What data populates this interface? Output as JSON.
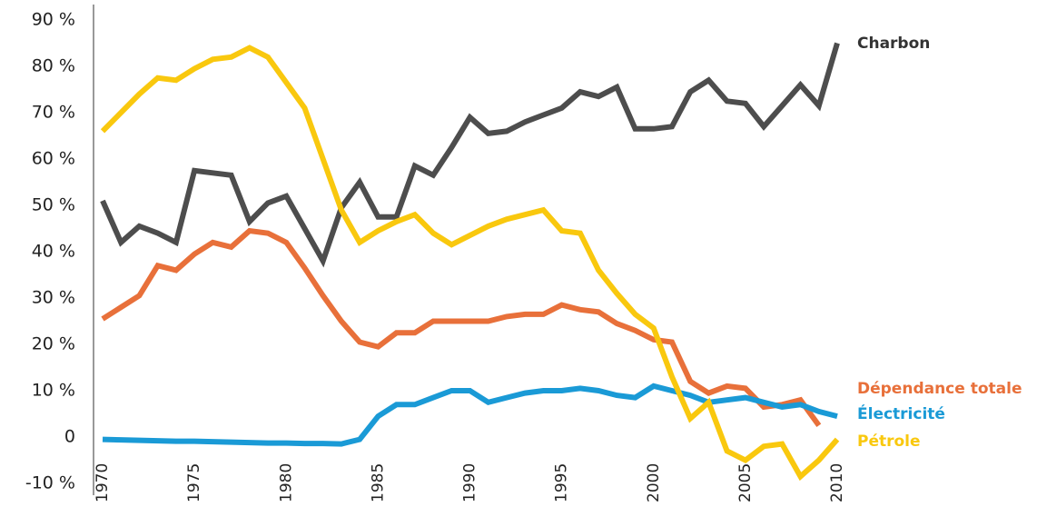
{
  "chart_data": {
    "type": "line",
    "x": [
      1970,
      1971,
      1972,
      1973,
      1974,
      1975,
      1976,
      1977,
      1978,
      1979,
      1980,
      1981,
      1982,
      1983,
      1984,
      1985,
      1986,
      1987,
      1988,
      1989,
      1990,
      1991,
      1992,
      1993,
      1994,
      1995,
      1996,
      1997,
      1998,
      1999,
      2000,
      2001,
      2002,
      2003,
      2004,
      2005,
      2006,
      2007,
      2008,
      2009,
      2010
    ],
    "series": [
      {
        "name": "Charbon",
        "color": "#4d4d4d",
        "values": [
          51,
          42,
          45.5,
          44,
          42,
          57.5,
          57,
          56.5,
          46.5,
          50.5,
          52,
          45,
          38,
          49.5,
          55,
          47.5,
          47.5,
          58.5,
          56.5,
          62.5,
          69,
          65.5,
          66,
          68,
          69.5,
          71,
          74.5,
          73.5,
          75.5,
          66.5,
          66.5,
          67,
          74.5,
          77,
          72.5,
          72,
          67,
          71.5,
          76,
          71.5,
          85
        ]
      },
      {
        "name": "Dépendance totale",
        "color": "#e8703a",
        "values": [
          25.5,
          28,
          30.5,
          37,
          36,
          39.5,
          42,
          41,
          44.5,
          44,
          42,
          36.5,
          30.5,
          25,
          20.5,
          19.5,
          22.5,
          22.5,
          25,
          25,
          25,
          25,
          26,
          26.5,
          26.5,
          28.5,
          27.5,
          27,
          24.5,
          23,
          21,
          20.5,
          12,
          9.5,
          11,
          10.5,
          6.5,
          7,
          8,
          2.5,
          null
        ]
      },
      {
        "name": "Électricité",
        "color": "#1a9ad6",
        "values": [
          -0.5,
          -0.6,
          -0.7,
          -0.8,
          -0.9,
          -0.9,
          -1,
          -1.1,
          -1.2,
          -1.3,
          -1.3,
          -1.4,
          -1.4,
          -1.5,
          -0.5,
          4.5,
          7,
          7,
          8.5,
          10,
          10,
          7.5,
          8.5,
          9.5,
          10,
          10,
          10.5,
          10,
          9,
          8.5,
          11,
          10,
          9,
          7.5,
          8,
          8.5,
          7.5,
          6.5,
          7,
          5.5,
          4.5
        ]
      },
      {
        "name": "Pétrole",
        "color": "#f9c80e",
        "values": [
          66,
          70,
          74,
          77.5,
          77,
          79.5,
          81.5,
          82,
          84,
          82,
          76.5,
          71,
          60,
          49,
          42,
          44.5,
          46.5,
          48,
          44,
          41.5,
          43.5,
          45.5,
          47,
          48,
          49,
          44.5,
          44,
          36,
          31,
          26.5,
          23.5,
          13,
          4,
          7.5,
          -3,
          -5,
          -2,
          -1.5,
          -8.5,
          -5,
          -0.5
        ]
      }
    ],
    "xlim": [
      1970,
      2010
    ],
    "xticks": [
      1970,
      1975,
      1980,
      1985,
      1990,
      1995,
      2000,
      2005,
      2010
    ],
    "ylim": [
      -10,
      90
    ],
    "yticks": [
      {
        "value": -10,
        "label": "-10 %"
      },
      {
        "value": 0,
        "label": "0"
      },
      {
        "value": 10,
        "label": "10 %"
      },
      {
        "value": 20,
        "label": "20 %"
      },
      {
        "value": 30,
        "label": "30 %"
      },
      {
        "value": 40,
        "label": "40 %"
      },
      {
        "value": 50,
        "label": "50 %"
      },
      {
        "value": 60,
        "label": "60 %"
      },
      {
        "value": 70,
        "label": "70 %"
      },
      {
        "value": 80,
        "label": "80 %"
      },
      {
        "value": 90,
        "label": "90 %"
      }
    ]
  }
}
